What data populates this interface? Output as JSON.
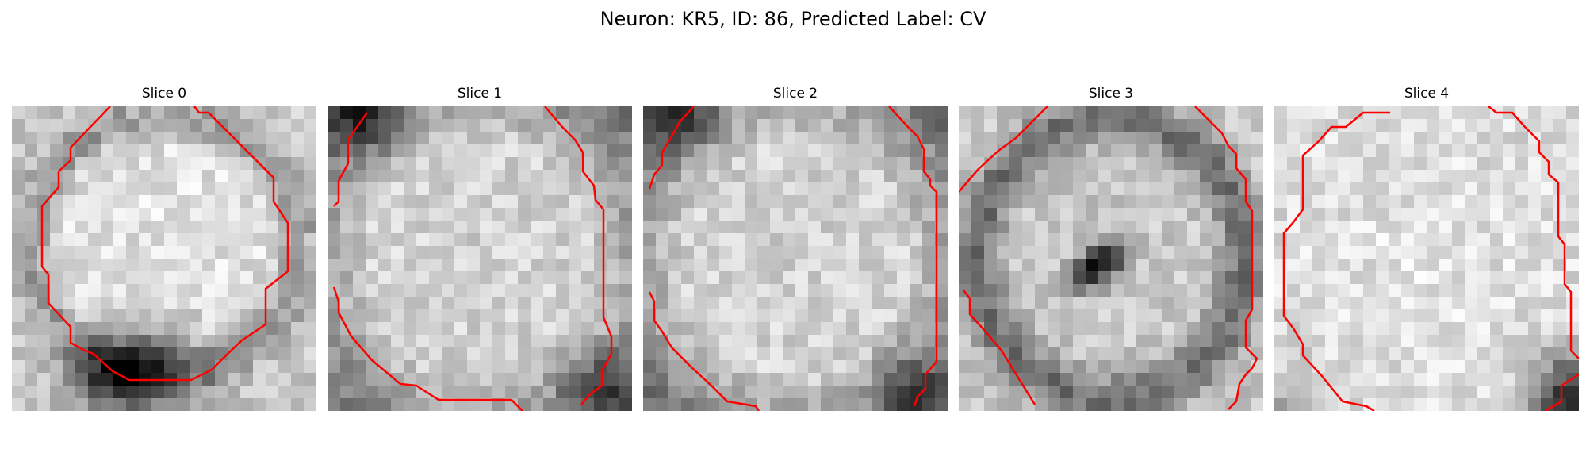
{
  "figure": {
    "title": "Neuron: KR5, ID: 86, Predicted Label: CV"
  },
  "panels": [
    {
      "label": "Slice 0",
      "style": "dark-ring-with-dark-bottom"
    },
    {
      "label": "Slice 1",
      "style": "bright-with-dark-border"
    },
    {
      "label": "Slice 2",
      "style": "bright-with-dark-border"
    },
    {
      "label": "Slice 3",
      "style": "dark-central-blob"
    },
    {
      "label": "Slice 4",
      "style": "very-bright-with-dark-corner"
    }
  ],
  "colors": {
    "contour": "#ff0000",
    "background": "#ffffff"
  }
}
